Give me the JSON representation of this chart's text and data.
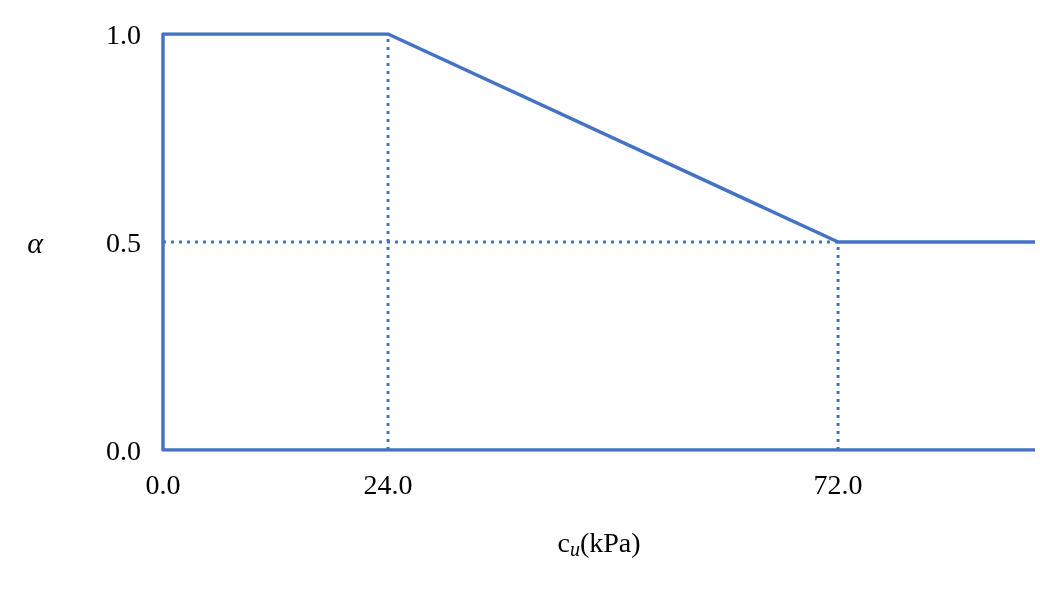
{
  "chart_data": {
    "type": "line",
    "xlabel": "c$_{u}$(kPa)",
    "ylabel": "α",
    "series": [
      {
        "color": "#4472c4",
        "x": [
          93,
          0,
          0,
          24,
          72,
          93
        ],
        "values": [
          0,
          0,
          1.0,
          1.0,
          0.5,
          0.5
        ],
        "line_style": "solid"
      },
      {
        "color": "#4472c4",
        "x": [
          24,
          24
        ],
        "values": [
          0,
          1.0
        ],
        "line_style": "dotted"
      },
      {
        "color": "#4472c4",
        "x": [
          72,
          72
        ],
        "values": [
          0,
          0.5
        ],
        "line_style": "dotted"
      },
      {
        "color": "#4472c4",
        "x": [
          0,
          72
        ],
        "values": [
          0.5,
          0.5
        ],
        "line_style": "dotted"
      }
    ],
    "xlim": [
      0,
      93
    ],
    "ylim": [
      0,
      1
    ],
    "xticks": [
      {
        "value": 0,
        "label": "0.0"
      },
      {
        "value": 24,
        "label": "24.0"
      },
      {
        "value": 72,
        "label": "72.0"
      }
    ],
    "yticks": [
      {
        "value": 0,
        "label": "0.0"
      },
      {
        "value": 0.5,
        "label": "0.5"
      },
      {
        "value": 1,
        "label": "1.0"
      }
    ],
    "grid": false,
    "marker": "none"
  }
}
